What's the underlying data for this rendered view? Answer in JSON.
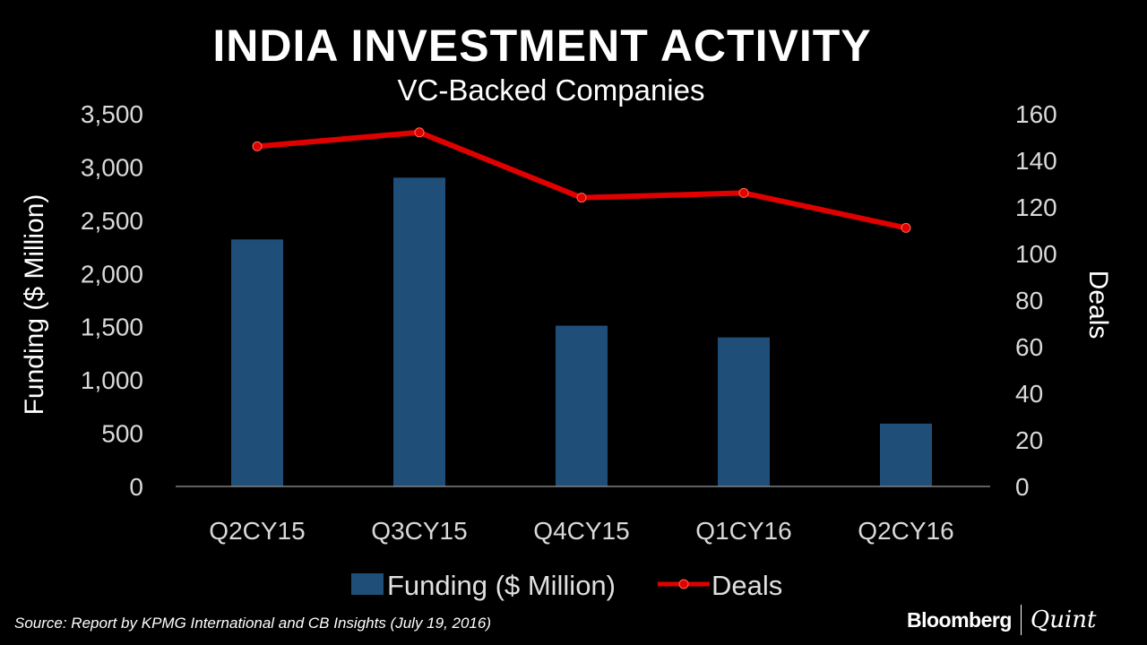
{
  "chart_data": {
    "type": "bar",
    "title": "INDIA INVESTMENT ACTIVITY",
    "subtitle": "VC-Backed Companies",
    "categories": [
      "Q2CY15",
      "Q3CY15",
      "Q4CY15",
      "Q1CY16",
      "Q2CY16"
    ],
    "series": [
      {
        "name": "Funding ($ Million)",
        "type": "bar",
        "axis": "left",
        "color": "#1f4e79",
        "values": [
          2320,
          2900,
          1510,
          1400,
          590
        ]
      },
      {
        "name": "Deals",
        "type": "line",
        "axis": "right",
        "color": "#e00000",
        "values": [
          146,
          152,
          124,
          126,
          111
        ]
      }
    ],
    "ylabel": "Funding ($ Million)",
    "y2label": "Deals",
    "ylim": [
      0,
      3500
    ],
    "y2lim": [
      0,
      160
    ],
    "yticks": [
      "0",
      "500",
      "1,000",
      "1,500",
      "2,000",
      "2,500",
      "3,000",
      "3,500"
    ],
    "y2ticks": [
      "0",
      "20",
      "40",
      "60",
      "80",
      "100",
      "120",
      "140",
      "160"
    ],
    "grid": false,
    "legend": "bottom"
  },
  "source": "Source: Report by KPMG International and CB Insights (July 19, 2016)",
  "logo": {
    "brand": "Bloomberg",
    "brand2": "Quint"
  }
}
